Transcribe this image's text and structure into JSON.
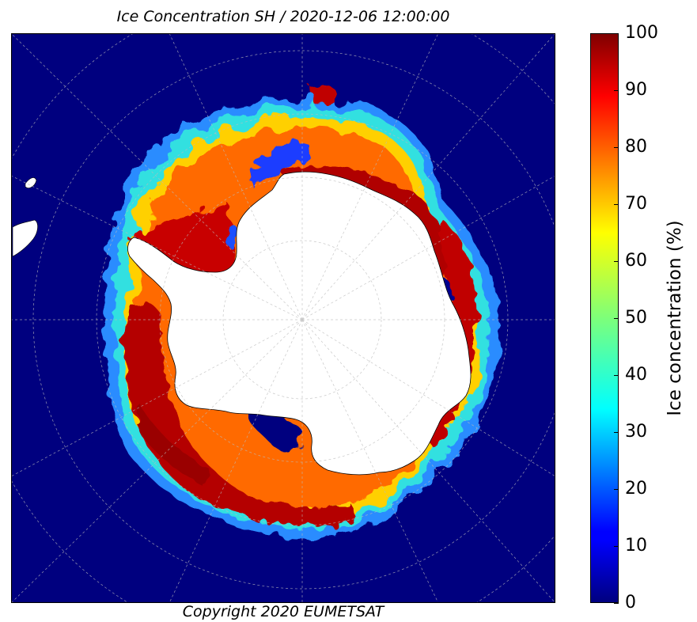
{
  "title": "Ice Concentration SH / 2020-12-06 12:00:00",
  "copyright": "Copyright 2020 EUMETSAT",
  "colorbar": {
    "label": "Ice concentration (%)",
    "min": 0,
    "max": 100,
    "ticks": [
      "0",
      "10",
      "20",
      "30",
      "40",
      "50",
      "60",
      "70",
      "80",
      "90",
      "100"
    ],
    "colormap": "jet"
  },
  "colors": {
    "ocean": "#00007f",
    "land": "#ffffff",
    "high_ice": "#8b0000",
    "grid": "#bbbbbb"
  }
}
